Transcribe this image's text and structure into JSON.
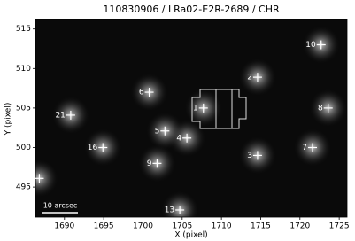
{
  "chart_data": {
    "type": "scatter",
    "title": "110830906 / LRa02-E2R-2689 / CHR",
    "x_label": "X (pixel)",
    "y_label": "Y (pixel)",
    "annotation": "10 arcsec",
    "labels": [
      "1",
      "2",
      "3",
      "4",
      "5",
      "6",
      "7",
      "8",
      "9",
      "10",
      "13",
      "16",
      "21",
      null
    ],
    "x": [
      1707.7,
      1714.6,
      1714.6,
      1705.6,
      1702.8,
      1700.8,
      1721.6,
      1723.6,
      1701.8,
      1722.7,
      1704.7,
      1694.9,
      1690.8,
      1686.8
    ],
    "values": [
      505.0,
      508.9,
      499.0,
      501.2,
      502.1,
      507.0,
      500.0,
      505.0,
      498.0,
      513.0,
      492.1,
      500.0,
      504.1,
      496.1
    ],
    "color": "#ffffff",
    "xlim": [
      1686.3,
      1726
    ],
    "ylim": [
      491.2,
      516.2
    ],
    "xticks": [
      1690,
      1695,
      1700,
      1705,
      1710,
      1715,
      1720,
      1725
    ],
    "yticks": [
      495,
      500,
      505,
      510,
      515
    ]
  }
}
